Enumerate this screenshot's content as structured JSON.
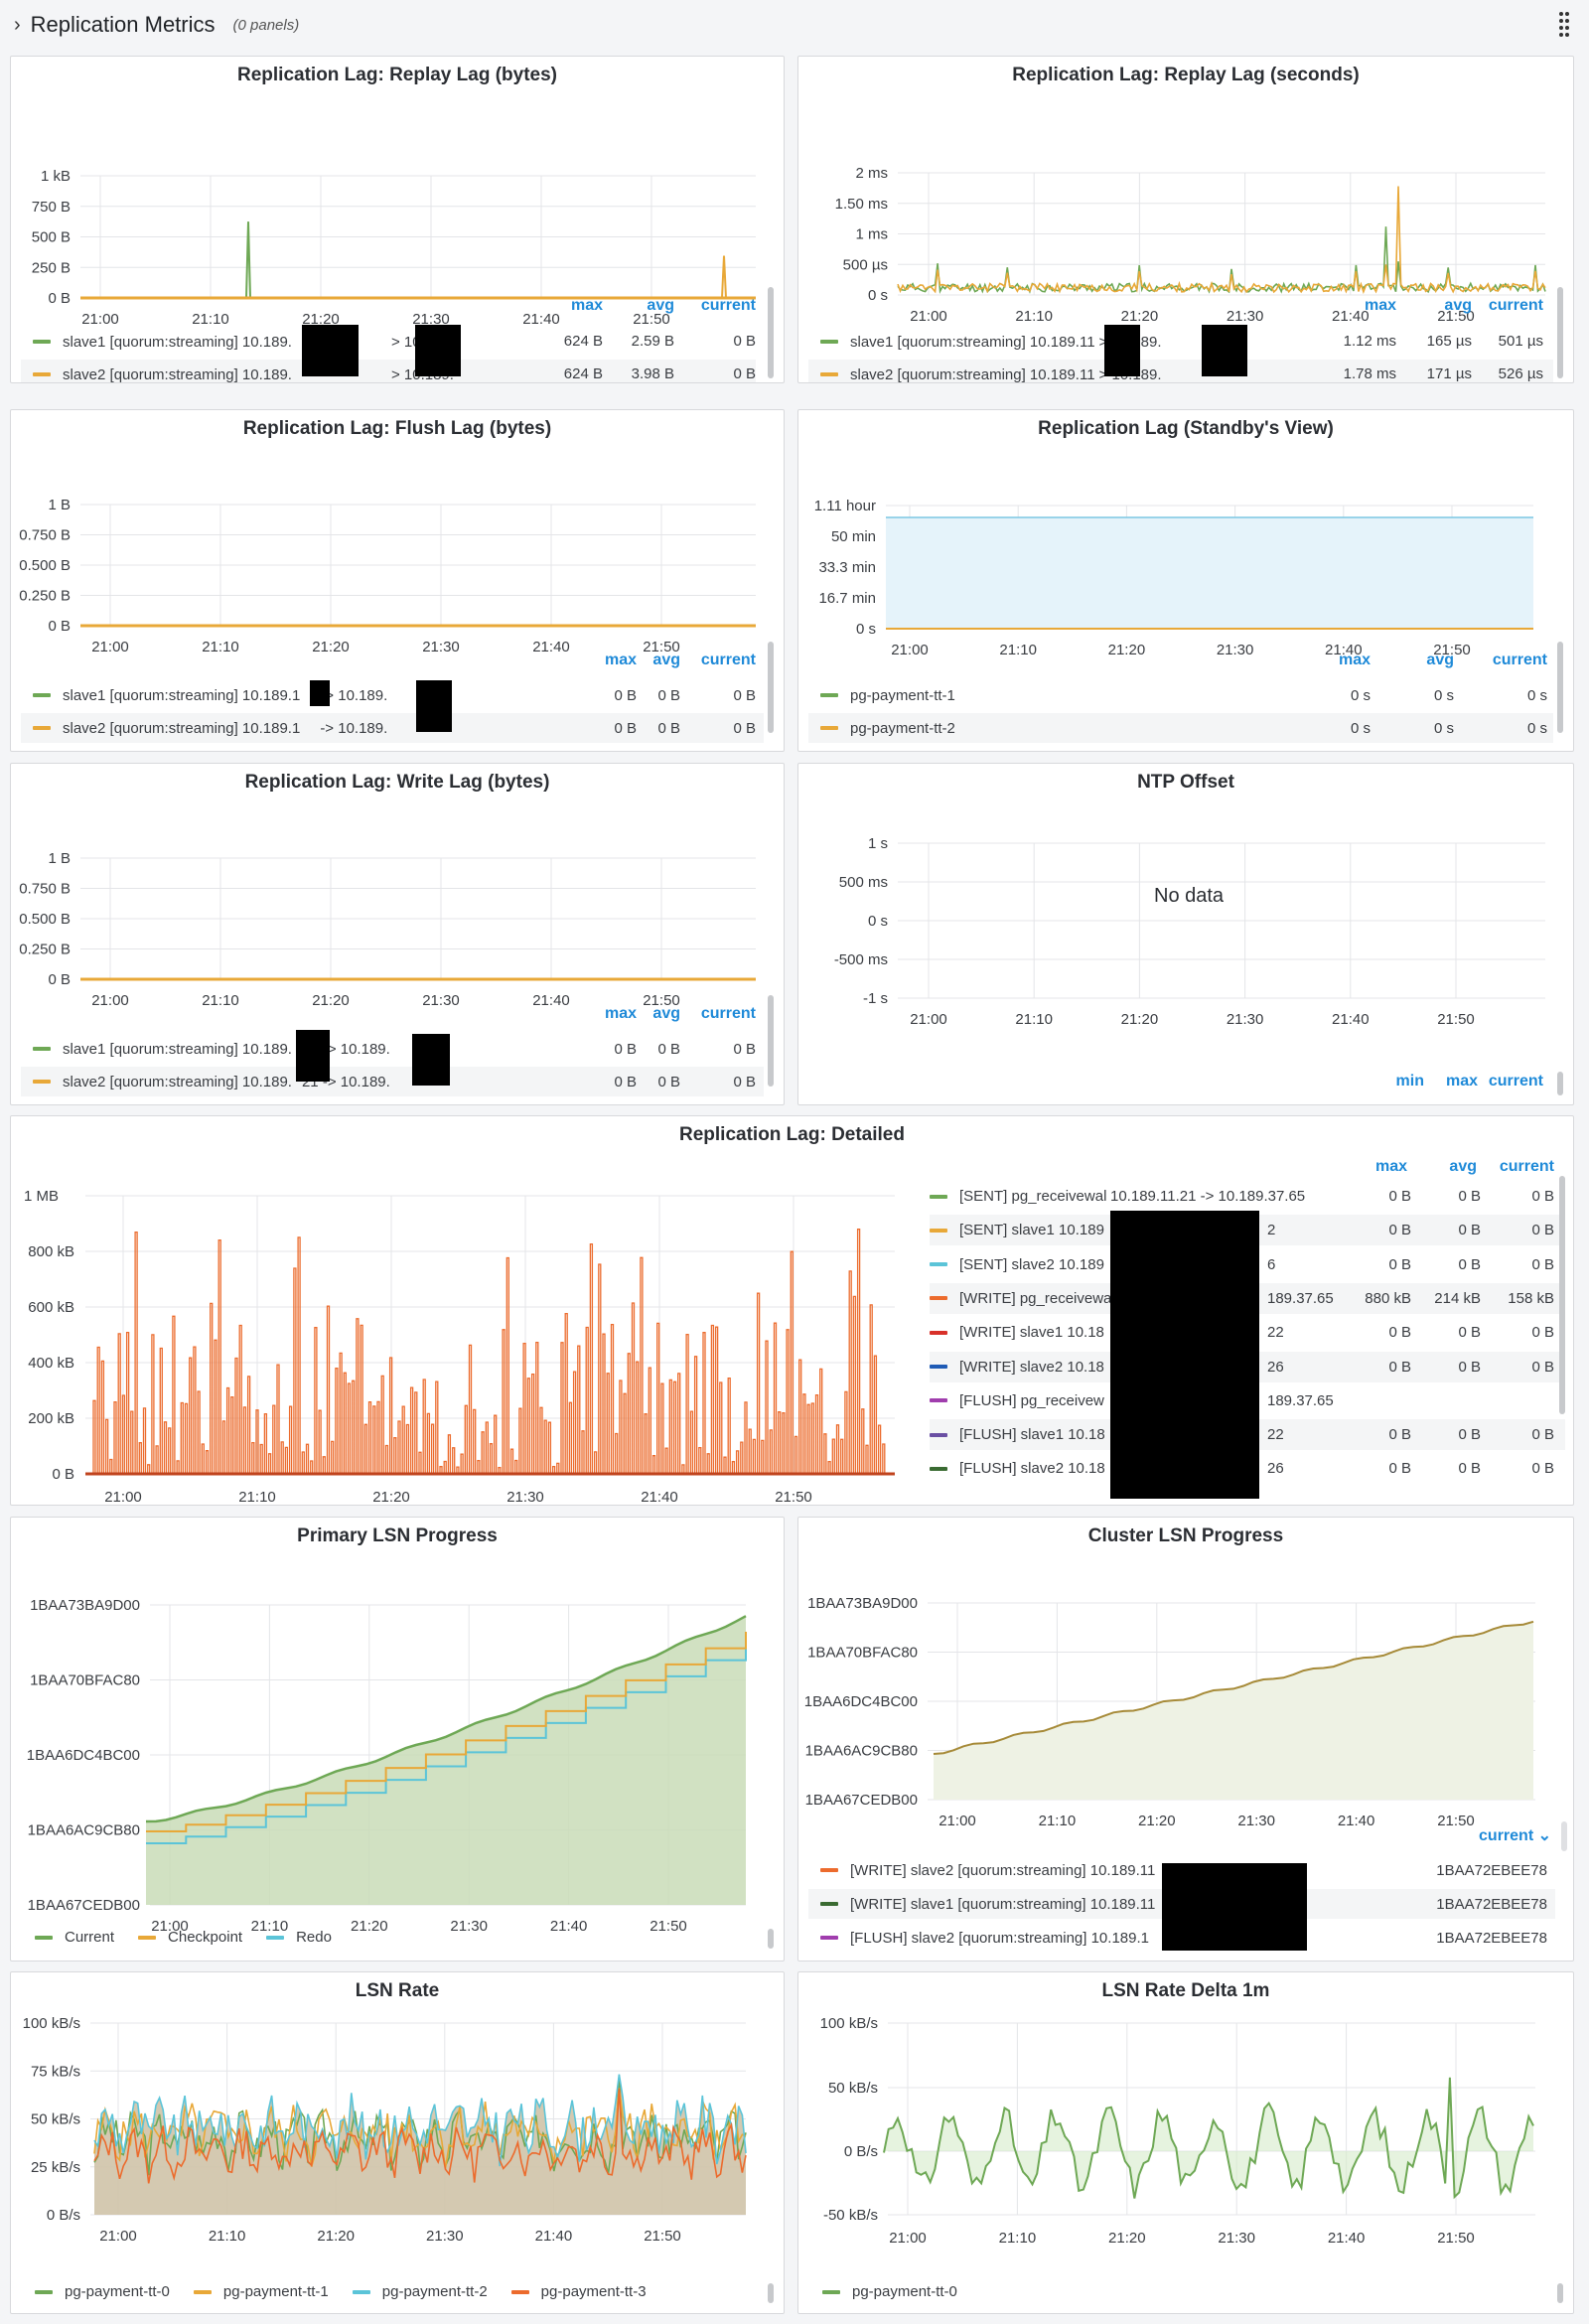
{
  "row": {
    "title": "Replication Metrics",
    "panel_count": "(0 panels)"
  },
  "colors": {
    "green": "#6ea855",
    "yellow": "#e8a838",
    "cyan": "#5bc4d8",
    "orange": "#ec6b2d",
    "red": "#d8312a",
    "blue": "#1f5bb5",
    "purple": "#a03dad",
    "violet": "#6a4fa3",
    "darkgreen": "#3a6b32",
    "olive": "#a68a38",
    "link": "#1f8ad8"
  },
  "legend_headers": {
    "max": "max",
    "avg": "avg",
    "current": "current",
    "min": "min",
    "current_sorted": "current ⌄"
  },
  "panels": {
    "replay_bytes": {
      "title": "Replication Lag: Replay Lag (bytes)",
      "y_ticks": [
        "1 kB",
        "750 B",
        "500 B",
        "250 B",
        "0 B"
      ],
      "x_ticks": [
        "21:00",
        "21:10",
        "21:20",
        "21:30",
        "21:40",
        "21:50"
      ],
      "legend": [
        {
          "name": "slave1 [quorum:streaming] 10.189.",
          "mid": "> 10.189.",
          "max": "624 B",
          "avg": "2.59 B",
          "current": "0 B"
        },
        {
          "name": "slave2 [quorum:streaming] 10.189.",
          "mid": "> 10.189.",
          "max": "624 B",
          "avg": "3.98 B",
          "current": "0 B"
        }
      ]
    },
    "replay_seconds": {
      "title": "Replication Lag: Replay Lag (seconds)",
      "y_ticks": [
        "2 ms",
        "1.50 ms",
        "1 ms",
        "500 µs",
        "0 s"
      ],
      "x_ticks": [
        "21:00",
        "21:10",
        "21:20",
        "21:30",
        "21:40",
        "21:50"
      ],
      "legend": [
        {
          "name": "slave1 [quorum:streaming] 10.189.11",
          "mid": "> 10.189.",
          "max": "1.12 ms",
          "avg": "165 µs",
          "current": "501 µs"
        },
        {
          "name": "slave2 [quorum:streaming] 10.189.11",
          "mid": "> 10.189.",
          "max": "1.78 ms",
          "avg": "171 µs",
          "current": "526 µs"
        }
      ]
    },
    "flush_bytes": {
      "title": "Replication Lag: Flush Lag (bytes)",
      "y_ticks": [
        "1 B",
        "0.750 B",
        "0.500 B",
        "0.250 B",
        "0 B"
      ],
      "x_ticks": [
        "21:00",
        "21:10",
        "21:20",
        "21:30",
        "21:40",
        "21:50"
      ],
      "legend": [
        {
          "name": "slave1 [quorum:streaming] 10.189.1",
          "mid": "-> 10.189.",
          "max": "0 B",
          "avg": "0 B",
          "current": "0 B"
        },
        {
          "name": "slave2 [quorum:streaming] 10.189.1",
          "mid": "-> 10.189.",
          "max": "0 B",
          "avg": "0 B",
          "current": "0 B"
        }
      ]
    },
    "standby_view": {
      "title": "Replication Lag (Standby's View)",
      "y_ticks": [
        "1.11 hour",
        "50 min",
        "33.3 min",
        "16.7 min",
        "0 s"
      ],
      "x_ticks": [
        "21:00",
        "21:10",
        "21:20",
        "21:30",
        "21:40",
        "21:50"
      ],
      "legend": [
        {
          "name": "pg-payment-tt-1",
          "max": "0 s",
          "avg": "0 s",
          "current": "0 s"
        },
        {
          "name": "pg-payment-tt-2",
          "max": "0 s",
          "avg": "0 s",
          "current": "0 s"
        }
      ]
    },
    "write_bytes": {
      "title": "Replication Lag: Write Lag (bytes)",
      "y_ticks": [
        "1 B",
        "0.750 B",
        "0.500 B",
        "0.250 B",
        "0 B"
      ],
      "x_ticks": [
        "21:00",
        "21:10",
        "21:20",
        "21:30",
        "21:40",
        "21:50"
      ],
      "legend": [
        {
          "name": "slave1 [quorum:streaming] 10.189.",
          "mid": "21 -> 10.189.",
          "max": "0 B",
          "avg": "0 B",
          "current": "0 B"
        },
        {
          "name": "slave2 [quorum:streaming] 10.189.",
          "mid": "21 -> 10.189.",
          "max": "0 B",
          "avg": "0 B",
          "current": "0 B"
        }
      ]
    },
    "ntp": {
      "title": "NTP Offset",
      "y_ticks": [
        "1 s",
        "500 ms",
        "0 s",
        "-500 ms",
        "-1 s"
      ],
      "x_ticks": [
        "21:00",
        "21:10",
        "21:20",
        "21:30",
        "21:40",
        "21:50"
      ],
      "no_data": "No data"
    },
    "detailed": {
      "title": "Replication Lag: Detailed",
      "y_ticks": [
        "1 MB",
        "800 kB",
        "600 kB",
        "400 kB",
        "200 kB",
        "0 B"
      ],
      "x_ticks": [
        "21:00",
        "21:10",
        "21:20",
        "21:30",
        "21:40",
        "21:50"
      ],
      "legend": [
        {
          "name": "[SENT] pg_receivewal",
          "tail": "10.189.11.21 -> 10.189.37.65",
          "max": "0 B",
          "avg": "0 B",
          "current": "0 B"
        },
        {
          "name": "[SENT] slave1 10.189",
          "tail": "2",
          "max": "0 B",
          "avg": "0 B",
          "current": "0 B"
        },
        {
          "name": "[SENT] slave2 10.189",
          "tail": "6",
          "max": "0 B",
          "avg": "0 B",
          "current": "0 B"
        },
        {
          "name": "[WRITE] pg_receivewa",
          "tail": "189.37.65",
          "max": "880 kB",
          "avg": "214 kB",
          "current": "158 kB"
        },
        {
          "name": "[WRITE] slave1 10.18",
          "tail": "22",
          "max": "0 B",
          "avg": "0 B",
          "current": "0 B"
        },
        {
          "name": "[WRITE] slave2 10.18",
          "tail": "26",
          "max": "0 B",
          "avg": "0 B",
          "current": "0 B"
        },
        {
          "name": "[FLUSH] pg_receivew",
          "tail": "189.37.65",
          "max": "",
          "avg": "",
          "current": ""
        },
        {
          "name": "[FLUSH] slave1 10.18",
          "tail": "22",
          "max": "0 B",
          "avg": "0 B",
          "current": "0 B"
        },
        {
          "name": "[FLUSH] slave2 10.18",
          "tail": "26",
          "max": "0 B",
          "avg": "0 B",
          "current": "0 B"
        }
      ]
    },
    "primary_lsn": {
      "title": "Primary LSN Progress",
      "y_ticks": [
        "1BAA73BA9D00",
        "1BAA70BFAC80",
        "1BAA6DC4BC00",
        "1BAA6AC9CB80",
        "1BAA67CEDB00"
      ],
      "x_ticks": [
        "21:00",
        "21:10",
        "21:20",
        "21:30",
        "21:40",
        "21:50"
      ],
      "legend": [
        "Current",
        "Checkpoint",
        "Redo"
      ]
    },
    "cluster_lsn": {
      "title": "Cluster LSN Progress",
      "y_ticks": [
        "1BAA73BA9D00",
        "1BAA70BFAC80",
        "1BAA6DC4BC00",
        "1BAA6AC9CB80",
        "1BAA67CEDB00"
      ],
      "x_ticks": [
        "21:00",
        "21:10",
        "21:20",
        "21:30",
        "21:40",
        "21:50"
      ],
      "legend": [
        {
          "name": "[WRITE] slave2 [quorum:streaming] 10.189.11",
          "current": "1BAA72EBEE78"
        },
        {
          "name": "[WRITE] slave1 [quorum:streaming] 10.189.11",
          "current": "1BAA72EBEE78"
        },
        {
          "name": "[FLUSH] slave2 [quorum:streaming] 10.189.1",
          "current": "1BAA72EBEE78"
        }
      ]
    },
    "lsn_rate": {
      "title": "LSN Rate",
      "y_ticks": [
        "100 kB/s",
        "75 kB/s",
        "50 kB/s",
        "25 kB/s",
        "0 B/s"
      ],
      "x_ticks": [
        "21:00",
        "21:10",
        "21:20",
        "21:30",
        "21:40",
        "21:50"
      ],
      "legend": [
        "pg-payment-tt-0",
        "pg-payment-tt-1",
        "pg-payment-tt-2",
        "pg-payment-tt-3"
      ]
    },
    "lsn_delta": {
      "title": "LSN Rate Delta 1m",
      "y_ticks": [
        "100 kB/s",
        "50 kB/s",
        "0 B/s",
        "-50 kB/s"
      ],
      "x_ticks": [
        "21:00",
        "21:10",
        "21:20",
        "21:30",
        "21:40",
        "21:50"
      ],
      "legend": [
        "pg-payment-tt-0"
      ]
    }
  }
}
